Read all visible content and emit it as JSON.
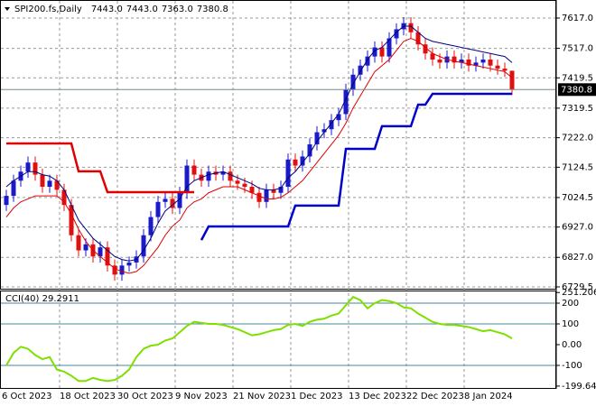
{
  "chart_data": [
    {
      "type": "candlestick",
      "title": "SPI200.fs,Daily",
      "header_values": [
        "7443.0",
        "7443.0",
        "7363.0",
        "7380.8"
      ],
      "categories": [
        "6 Oct 2023",
        null,
        null,
        null,
        null,
        null,
        null,
        null,
        "18 Oct 2023",
        null,
        null,
        null,
        null,
        null,
        null,
        null,
        "30 Oct 2023",
        null,
        null,
        null,
        null,
        null,
        null,
        null,
        "9 Nov 2023",
        null,
        null,
        null,
        null,
        null,
        null,
        null,
        "21 Nov 2023",
        null,
        null,
        null,
        null,
        null,
        null,
        null,
        "1 Dec 2023",
        null,
        null,
        null,
        null,
        null,
        null,
        null,
        "13 Dec 2023",
        null,
        null,
        null,
        null,
        null,
        null,
        null,
        "22 Dec 2023",
        null,
        null,
        null,
        null,
        null,
        null,
        null,
        "8 Jan 2024",
        null,
        null,
        null,
        null,
        null,
        null
      ],
      "open": [
        7000,
        7030,
        7080,
        7110,
        7140,
        7100,
        7060,
        7080,
        7050,
        7000,
        6900,
        6850,
        6870,
        6830,
        6860,
        6800,
        6770,
        6800,
        6810,
        6830,
        6900,
        6960,
        7010,
        7020,
        6990,
        7040,
        7130,
        7100,
        7080,
        7110,
        7100,
        7110,
        7080,
        7070,
        7060,
        7040,
        7010,
        7050,
        7040,
        7060,
        7150,
        7130,
        7160,
        7200,
        7240,
        7250,
        7280,
        7300,
        7380,
        7430,
        7460,
        7490,
        7520,
        7490,
        7550,
        7580,
        7600,
        7570,
        7530,
        7500,
        7480,
        7470,
        7490,
        7470,
        7480,
        7460,
        7470,
        7480,
        7460,
        7450,
        7443
      ],
      "high": [
        7050,
        7100,
        7130,
        7160,
        7160,
        7120,
        7100,
        7100,
        7070,
        7020,
        6920,
        6890,
        6890,
        6880,
        6880,
        6820,
        6820,
        6830,
        6850,
        6920,
        6980,
        7030,
        7040,
        7040,
        7060,
        7150,
        7150,
        7120,
        7130,
        7130,
        7130,
        7130,
        7100,
        7090,
        7080,
        7060,
        7070,
        7070,
        7080,
        7170,
        7170,
        7180,
        7220,
        7260,
        7270,
        7300,
        7320,
        7400,
        7450,
        7480,
        7510,
        7540,
        7540,
        7570,
        7600,
        7620,
        7620,
        7590,
        7550,
        7520,
        7500,
        7510,
        7510,
        7500,
        7500,
        7490,
        7500,
        7500,
        7480,
        7470,
        7443
      ],
      "low": [
        6980,
        7010,
        7060,
        7090,
        7080,
        7040,
        7040,
        7030,
        6980,
        6880,
        6830,
        6830,
        6810,
        6810,
        6780,
        6750,
        6750,
        6780,
        6790,
        6810,
        6880,
        6940,
        6990,
        6970,
        6970,
        7020,
        7080,
        7060,
        7060,
        7080,
        7080,
        7060,
        7050,
        7040,
        7020,
        6990,
        6990,
        7020,
        7020,
        7040,
        7110,
        7110,
        7140,
        7180,
        7220,
        7230,
        7260,
        7280,
        7360,
        7410,
        7440,
        7470,
        7470,
        7470,
        7530,
        7560,
        7550,
        7510,
        7480,
        7460,
        7450,
        7450,
        7450,
        7450,
        7440,
        7440,
        7450,
        7440,
        7430,
        7423,
        7363
      ],
      "close": [
        7030,
        7080,
        7110,
        7140,
        7100,
        7060,
        7080,
        7050,
        7000,
        6900,
        6850,
        6870,
        6830,
        6860,
        6800,
        6770,
        6800,
        6810,
        6830,
        6900,
        6960,
        7010,
        7020,
        6990,
        7040,
        7130,
        7100,
        7080,
        7110,
        7100,
        7110,
        7080,
        7070,
        7060,
        7040,
        7010,
        7050,
        7040,
        7060,
        7150,
        7130,
        7160,
        7200,
        7240,
        7250,
        7280,
        7300,
        7380,
        7430,
        7460,
        7490,
        7520,
        7490,
        7550,
        7580,
        7600,
        7570,
        7530,
        7500,
        7480,
        7470,
        7490,
        7470,
        7480,
        7460,
        7470,
        7480,
        7460,
        7450,
        7443,
        7380.8
      ],
      "up_color": "#1a1ac8",
      "down_color": "#e01010",
      "overlays": [
        {
          "color": "#000080",
          "width": 1,
          "values": [
            7060,
            7080,
            7095,
            7110,
            7110,
            7100,
            7095,
            7080,
            7050,
            7000,
            6950,
            6920,
            6890,
            6870,
            6850,
            6830,
            6820,
            6815,
            6820,
            6850,
            6890,
            6940,
            6980,
            7000,
            7020,
            7060,
            7080,
            7090,
            7100,
            7105,
            7110,
            7100,
            7090,
            7080,
            7070,
            7055,
            7050,
            7050,
            7055,
            7090,
            7110,
            7140,
            7170,
            7210,
            7240,
            7270,
            7300,
            7350,
            7400,
            7440,
            7480,
            7510,
            7520,
            7545,
            7570,
            7590,
            7590,
            7570,
            7550,
            7540,
            7535,
            7530,
            7525,
            7520,
            7515,
            7510,
            7505,
            7500,
            7495,
            7490,
            7470
          ]
        },
        {
          "color": "#e00000",
          "width": 1,
          "values": [
            6960,
            6990,
            7010,
            7020,
            7030,
            7030,
            7030,
            7030,
            7010,
            6970,
            6920,
            6880,
            6850,
            6830,
            6810,
            6790,
            6780,
            6775,
            6780,
            6800,
            6830,
            6860,
            6900,
            6930,
            6950,
            6990,
            7010,
            7020,
            7040,
            7050,
            7060,
            7060,
            7060,
            7050,
            7040,
            7030,
            7020,
            7020,
            7025,
            7040,
            7060,
            7080,
            7110,
            7140,
            7170,
            7200,
            7230,
            7270,
            7320,
            7360,
            7400,
            7440,
            7460,
            7480,
            7510,
            7540,
            7550,
            7540,
            7520,
            7500,
            7490,
            7480,
            7475,
            7470,
            7465,
            7460,
            7455,
            7450,
            7445,
            7440,
            7420
          ]
        },
        {
          "color": "#e00000",
          "width": 2.5,
          "values": [
            7203,
            7203,
            7203,
            7203,
            7203,
            7203,
            7203,
            7203,
            7203,
            7203,
            7111,
            7111,
            7111,
            7111,
            7042,
            7042,
            7042,
            7042,
            7042,
            7042,
            7042,
            7042,
            7042,
            7042,
            7042,
            7042,
            7042,
            null,
            null,
            null,
            null,
            null,
            null,
            null,
            null,
            null,
            null,
            null,
            null,
            null,
            null,
            null,
            null,
            null,
            null,
            null,
            null,
            null,
            null,
            null,
            null,
            null,
            null,
            null,
            null,
            null,
            null,
            null,
            null,
            null,
            null,
            null,
            null,
            null,
            null,
            null,
            null,
            null,
            null,
            null,
            null
          ]
        },
        {
          "color": "#0000cd",
          "width": 2.5,
          "values": [
            null,
            null,
            null,
            null,
            null,
            null,
            null,
            null,
            null,
            null,
            null,
            null,
            null,
            null,
            null,
            null,
            null,
            null,
            null,
            null,
            null,
            null,
            null,
            null,
            null,
            null,
            null,
            6884,
            6929,
            6929,
            6929,
            6929,
            6929,
            6929,
            6929,
            6929,
            6929,
            6929,
            6929,
            6929,
            6998,
            6998,
            6998,
            6998,
            6998,
            6998,
            6998,
            7185,
            7185,
            7185,
            7185,
            7185,
            7260,
            7260,
            7260,
            7260,
            7260,
            7331,
            7331,
            7367,
            7367,
            7367,
            7367,
            7367,
            7367,
            7367,
            7367,
            7367,
            7367,
            7367,
            7367
          ]
        }
      ],
      "last_price": 7380.8,
      "ylim": [
        6723.5,
        7670.6
      ],
      "yticks": [
        {
          "value": 7617,
          "label": "7617.0"
        },
        {
          "value": 7517,
          "label": "7517.0"
        },
        7419.5,
        7319.5,
        {
          "value": 7222,
          "label": "7222.0"
        },
        7124.5,
        7024.5,
        {
          "value": 6927,
          "label": "6927.0"
        },
        {
          "value": 6827,
          "label": "6827.0"
        },
        6729.5
      ],
      "grid": true
    },
    {
      "type": "line",
      "title": "CCI(40) 29.2911",
      "series": [
        {
          "color": "#7fe000",
          "values": [
            -100,
            -40,
            -10,
            -20,
            -50,
            -70,
            -60,
            -120,
            -130,
            -150,
            -175,
            -175,
            -160,
            -170,
            -175,
            -170,
            -150,
            -120,
            -60,
            -20,
            -5,
            0,
            20,
            30,
            60,
            90,
            110,
            105,
            100,
            100,
            95,
            85,
            75,
            60,
            45,
            50,
            60,
            70,
            75,
            95,
            100,
            90,
            110,
            120,
            125,
            140,
            150,
            190,
            230,
            215,
            175,
            200,
            215,
            210,
            200,
            180,
            175,
            150,
            130,
            110,
            100,
            95,
            95,
            90,
            85,
            75,
            65,
            70,
            60,
            50,
            30
          ]
        }
      ],
      "levels": [
        200,
        100,
        -100
      ],
      "level_color": "#4a8a9a",
      "ylim": [
        -208.7,
        256.5
      ],
      "yticks": [
        251.206,
        200,
        100,
        {
          "value": 0,
          "label": "0.00"
        },
        -100,
        -199.648
      ]
    }
  ]
}
